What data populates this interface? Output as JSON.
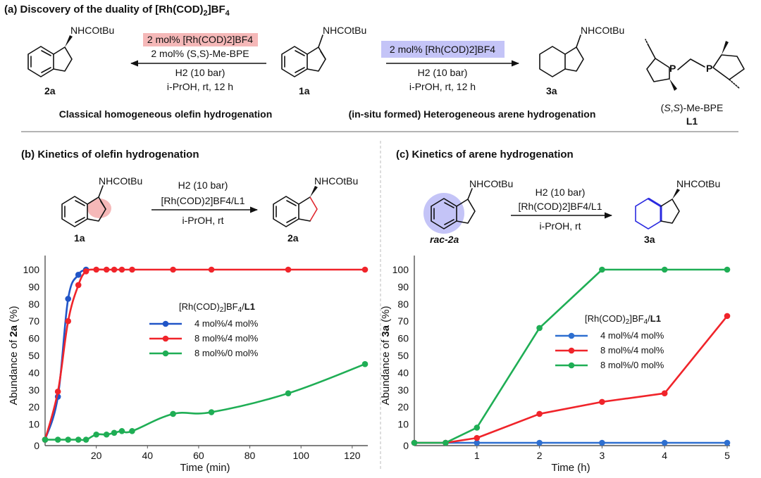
{
  "panel_a": {
    "heading": "(a) Discovery of the duality of [Rh(COD)2]BF4",
    "substituent": "NHCOtBu",
    "left_conditions": [
      "2 mol% [Rh(COD)2]BF4",
      "2 mol% (S,S)-Me-BPE",
      "H2 (10 bar)",
      "i-PrOH, rt, 12 h"
    ],
    "right_conditions": [
      "2 mol% [Rh(COD)2]BF4",
      "H2 (10 bar)",
      "i-PrOH, rt, 12 h"
    ],
    "compound_left": "2a",
    "compound_center": "1a",
    "compound_right": "3a",
    "caption_left": "Classical homogeneous olefin hydrogenation",
    "caption_right": "(in-situ formed) Heterogeneous arene hydrogenation",
    "ligand_name": "(S,S)-Me-BPE",
    "ligand_label": "L1",
    "phosphorus": "P",
    "highlight_colors": {
      "red": "#f5b8b8",
      "blue": "#c4c4f7"
    }
  },
  "panel_b": {
    "heading": "(b) Kinetics of olefin hydrogenation",
    "substituent": "NHCOtBu",
    "conditions": [
      "H2 (10 bar)",
      "[Rh(COD)2]BF4/L1",
      "i-PrOH, rt"
    ],
    "start": "1a",
    "product": "2a"
  },
  "panel_c": {
    "heading": "(c) Kinetics of arene hydrogenation",
    "substituent": "NHCOtBu",
    "conditions": [
      "H2 (10 bar)",
      "[Rh(COD)2]BF4/L1",
      "i-PrOH, rt"
    ],
    "start": "rac-2a",
    "product": "3a"
  },
  "chart_data": [
    {
      "type": "line",
      "ylabel": "Abundance of 2a (%)",
      "xlabel": "Time (min)",
      "xlim": [
        0,
        125
      ],
      "ylim": [
        0,
        100
      ],
      "xticks": [
        20,
        40,
        60,
        80,
        100,
        120
      ],
      "yticks": [
        0,
        10,
        20,
        30,
        40,
        50,
        60,
        70,
        80,
        90,
        100
      ],
      "grid": false,
      "legend_title": "[Rh(COD)2]BF4/L1",
      "legend_position": "center",
      "series": [
        {
          "name": "4 mol%/4 mol%",
          "color": "#2155c7",
          "x": [
            0,
            5,
            9,
            13,
            16
          ],
          "y": [
            1,
            26,
            83,
            97,
            100
          ]
        },
        {
          "name": "8 mol%/4 mol%",
          "color": "#f0242a",
          "x": [
            0,
            5,
            9,
            13,
            16,
            20,
            24,
            27,
            30,
            34,
            50,
            65,
            95,
            125
          ],
          "y": [
            1,
            29,
            70,
            91,
            99,
            100,
            100,
            100,
            100,
            100,
            100,
            100,
            100,
            100
          ]
        },
        {
          "name": "8 mol%/0 mol%",
          "color": "#1fae55",
          "x": [
            0,
            5,
            9,
            13,
            16,
            20,
            24,
            27,
            30,
            34,
            50,
            65,
            95,
            125
          ],
          "y": [
            1,
            1,
            1,
            1,
            1,
            4,
            4,
            5,
            6,
            6,
            16,
            17,
            28,
            45
          ]
        }
      ]
    },
    {
      "type": "line",
      "ylabel": "Abundance of 3a (%)",
      "xlabel": "Time (h)",
      "xlim": [
        0,
        5
      ],
      "ylim": [
        0,
        100
      ],
      "xticks": [
        1,
        2,
        3,
        4,
        5
      ],
      "yticks": [
        0,
        10,
        20,
        30,
        40,
        50,
        60,
        70,
        80,
        90,
        100
      ],
      "grid": false,
      "legend_title": "[Rh(COD)2]BF4/L1",
      "legend_position": "center",
      "series": [
        {
          "name": "4 mol%/4 mol%",
          "color": "#2e6fd0",
          "x": [
            0,
            0.5,
            1,
            2,
            3,
            4,
            5
          ],
          "y": [
            0,
            0,
            0,
            0,
            0,
            0,
            0
          ]
        },
        {
          "name": "8 mol%/4 mol%",
          "color": "#f0242a",
          "x": [
            0,
            0.5,
            1,
            2,
            3,
            4,
            5
          ],
          "y": [
            0,
            0,
            2,
            16,
            23,
            28,
            73
          ]
        },
        {
          "name": "8 mol%/0 mol%",
          "color": "#1fae55",
          "x": [
            0,
            0.5,
            1,
            2,
            3,
            4,
            5
          ],
          "y": [
            0,
            0,
            8,
            66,
            100,
            100,
            100
          ]
        }
      ]
    }
  ]
}
